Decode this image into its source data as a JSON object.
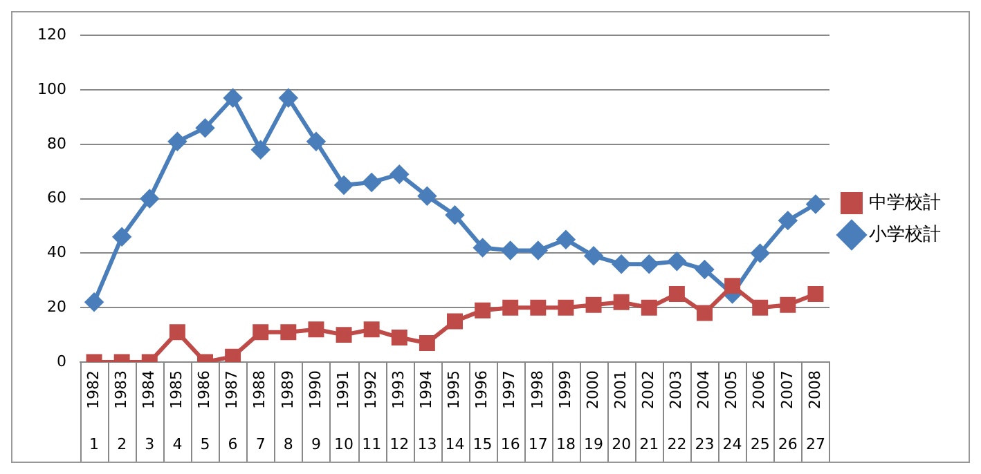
{
  "chart_data": {
    "type": "line",
    "categories": [
      "1982",
      "1983",
      "1984",
      "1985",
      "1986",
      "1987",
      "1988",
      "1989",
      "1990",
      "1991",
      "1992",
      "1993",
      "1994",
      "1995",
      "1996",
      "1997",
      "1998",
      "1999",
      "2000",
      "2001",
      "2002",
      "2003",
      "2004",
      "2005",
      "2006",
      "2007",
      "2008"
    ],
    "series": [
      {
        "name": "小学校計",
        "color": "#4a7ebb",
        "marker": "diamond",
        "values": [
          22,
          46,
          60,
          81,
          86,
          97,
          78,
          97,
          81,
          65,
          66,
          69,
          61,
          54,
          42,
          41,
          41,
          45,
          39,
          36,
          36,
          37,
          34,
          25,
          40,
          52,
          58
        ]
      },
      {
        "name": "中学校計",
        "color": "#be4b48",
        "marker": "square",
        "values": [
          0,
          0,
          0,
          11,
          0,
          2,
          11,
          11,
          12,
          10,
          12,
          9,
          7,
          15,
          19,
          20,
          20,
          20,
          21,
          22,
          20,
          25,
          18,
          28,
          20,
          21,
          25
        ]
      }
    ],
    "ylim": [
      0,
      120
    ],
    "yticks": [
      0,
      20,
      40,
      60,
      80,
      100,
      120
    ],
    "grid": "y",
    "legend": "right",
    "annotations": [
      "1",
      "2",
      "3",
      "4",
      "5",
      "6",
      "7",
      "8",
      "9",
      "10",
      "11",
      "12",
      "13",
      "14",
      "15",
      "16",
      "17",
      "18",
      "19",
      "20",
      "21",
      "22",
      "23",
      "24",
      "25",
      "26",
      "27"
    ]
  }
}
